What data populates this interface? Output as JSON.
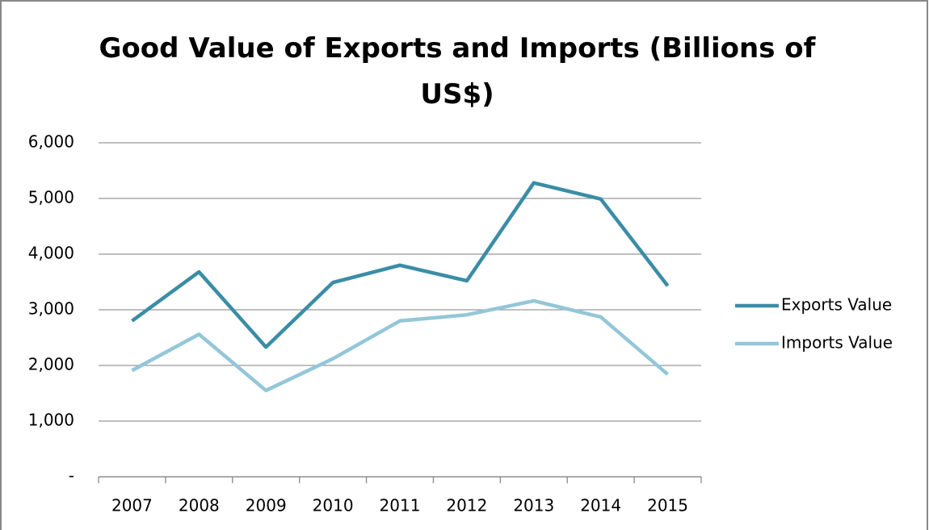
{
  "chart_data": {
    "type": "line",
    "title": "Good Value of Exports and Imports (Billions of US$)",
    "categories": [
      "2007",
      "2008",
      "2009",
      "2010",
      "2011",
      "2012",
      "2013",
      "2014",
      "2015"
    ],
    "series": [
      {
        "name": "Exports Value",
        "color": "#3a8da6",
        "values": [
          2800,
          3680,
          2330,
          3490,
          3800,
          3520,
          5280,
          4990,
          3430
        ]
      },
      {
        "name": "Imports Value",
        "color": "#93c6d9",
        "values": [
          1910,
          2560,
          1550,
          2120,
          2800,
          2910,
          3160,
          2870,
          1840
        ]
      }
    ],
    "ylim": [
      0,
      6000
    ],
    "yticks": [
      {
        "value": 0,
        "label": "-"
      },
      {
        "value": 1000,
        "label": "1,000"
      },
      {
        "value": 2000,
        "label": "2,000"
      },
      {
        "value": 3000,
        "label": "3,000"
      },
      {
        "value": 4000,
        "label": "4,000"
      },
      {
        "value": 5000,
        "label": "5,000"
      },
      {
        "value": 6000,
        "label": "6,000"
      }
    ],
    "grid": true,
    "legend": "right"
  }
}
